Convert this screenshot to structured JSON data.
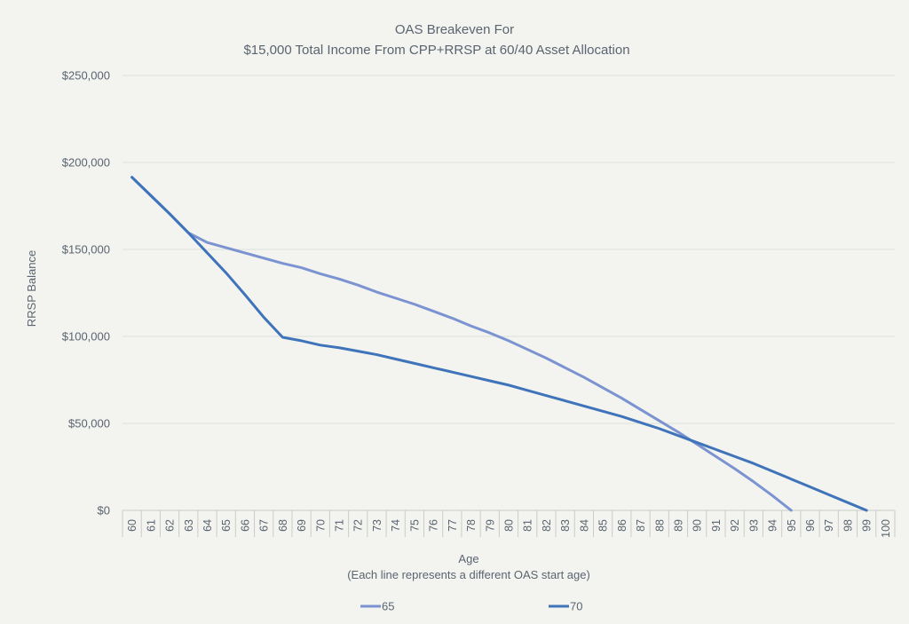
{
  "chart_data": {
    "type": "line",
    "title_line1": "OAS Breakeven For",
    "title_line2": "$15,000 Total Income From CPP+RRSP at 60/40 Asset Allocation",
    "xlabel": "Age",
    "xlabel_note": "(Each line represents a different OAS start age)",
    "ylabel": "RRSP Balance",
    "ylim": [
      0,
      250000
    ],
    "ytick_values": [
      0,
      50000,
      100000,
      150000,
      200000,
      250000
    ],
    "ytick_labels": [
      "$0",
      "$50,000",
      "$100,000",
      "$150,000",
      "$200,000",
      "$250,000"
    ],
    "categories": [
      "60",
      "61",
      "62",
      "63",
      "64",
      "65",
      "66",
      "67",
      "68",
      "69",
      "70",
      "71",
      "72",
      "73",
      "74",
      "75",
      "76",
      "77",
      "78",
      "79",
      "80",
      "81",
      "82",
      "83",
      "84",
      "85",
      "86",
      "87",
      "88",
      "89",
      "90",
      "91",
      "92",
      "93",
      "94",
      "95",
      "96",
      "97",
      "98",
      "99",
      "100"
    ],
    "series": [
      {
        "name": "65",
        "color": "#7b93d1",
        "values": [
          191500,
          181000,
          170500,
          159500,
          154000,
          151000,
          148000,
          145000,
          142000,
          139500,
          136000,
          133000,
          129500,
          125500,
          122000,
          118500,
          114500,
          110500,
          106000,
          102000,
          97500,
          92500,
          87500,
          82000,
          76500,
          70500,
          64500,
          58000,
          51500,
          45000,
          38000,
          31000,
          24000,
          16500,
          8500,
          0,
          null,
          null,
          null,
          null,
          null
        ]
      },
      {
        "name": "70",
        "color": "#3f73ba",
        "values": [
          191500,
          181000,
          170500,
          159500,
          148000,
          136500,
          124000,
          111000,
          99500,
          97500,
          95000,
          93500,
          91500,
          89500,
          87000,
          84500,
          82000,
          79500,
          77000,
          74500,
          72000,
          69000,
          66000,
          63000,
          60000,
          57000,
          54000,
          50500,
          47000,
          43000,
          39000,
          35000,
          31000,
          27000,
          22500,
          18000,
          13500,
          9000,
          4500,
          0,
          null
        ]
      }
    ],
    "legend": "bottom"
  }
}
